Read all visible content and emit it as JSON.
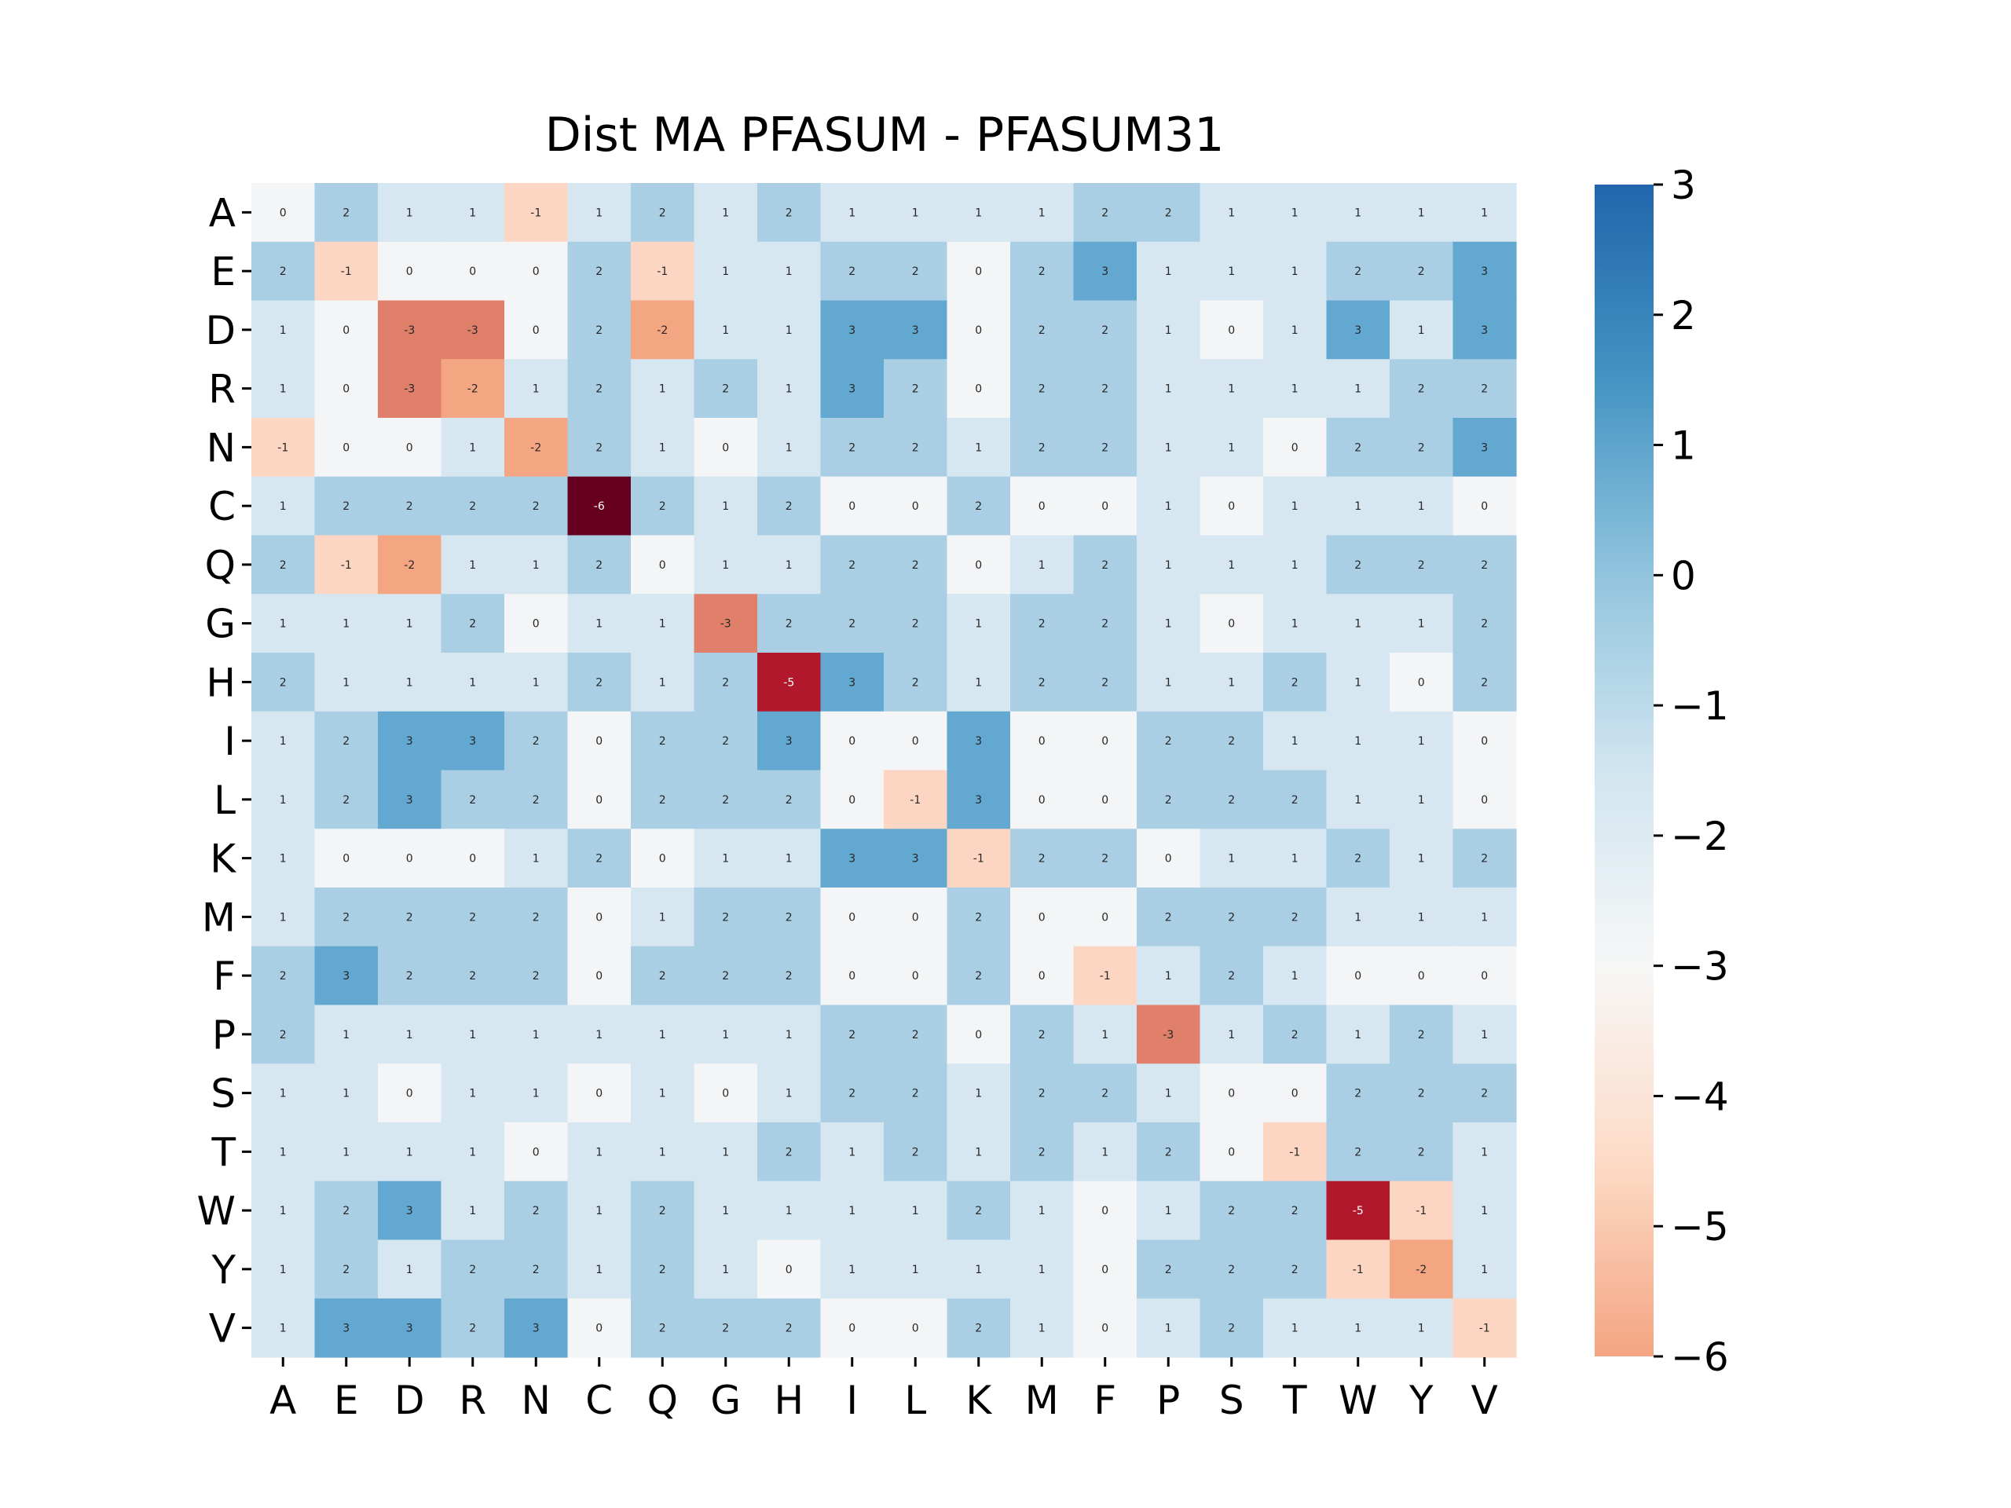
{
  "chart_data": {
    "type": "heatmap",
    "title": "Dist MA PFASUM - PFASUM31",
    "xlabel": "",
    "ylabel": "",
    "x_labels": [
      "A",
      "E",
      "D",
      "R",
      "N",
      "C",
      "Q",
      "G",
      "H",
      "I",
      "L",
      "K",
      "M",
      "F",
      "P",
      "S",
      "T",
      "W",
      "Y",
      "V"
    ],
    "y_labels": [
      "A",
      "E",
      "D",
      "R",
      "N",
      "C",
      "Q",
      "G",
      "H",
      "I",
      "L",
      "K",
      "M",
      "F",
      "P",
      "S",
      "T",
      "W",
      "Y",
      "V"
    ],
    "values": [
      [
        0,
        2,
        1,
        1,
        -1,
        1,
        2,
        1,
        2,
        1,
        1,
        1,
        1,
        2,
        2,
        1,
        1,
        1,
        1,
        1
      ],
      [
        2,
        -1,
        0,
        0,
        0,
        2,
        -1,
        1,
        1,
        2,
        2,
        0,
        2,
        3,
        1,
        1,
        1,
        2,
        2,
        3
      ],
      [
        1,
        0,
        -3,
        -3,
        0,
        2,
        -2,
        1,
        1,
        3,
        3,
        0,
        2,
        2,
        1,
        0,
        1,
        3,
        1,
        3
      ],
      [
        1,
        0,
        -3,
        -2,
        1,
        2,
        1,
        2,
        1,
        3,
        2,
        0,
        2,
        2,
        1,
        1,
        1,
        1,
        2,
        2
      ],
      [
        -1,
        0,
        0,
        1,
        -2,
        2,
        1,
        0,
        1,
        2,
        2,
        1,
        2,
        2,
        1,
        1,
        0,
        2,
        2,
        3
      ],
      [
        1,
        2,
        2,
        2,
        2,
        -6,
        2,
        1,
        2,
        0,
        0,
        2,
        0,
        0,
        1,
        0,
        1,
        1,
        1,
        0
      ],
      [
        2,
        -1,
        -2,
        1,
        1,
        2,
        0,
        1,
        1,
        2,
        2,
        0,
        1,
        2,
        1,
        1,
        1,
        2,
        2,
        2
      ],
      [
        1,
        1,
        1,
        2,
        0,
        1,
        1,
        -3,
        2,
        2,
        2,
        1,
        2,
        2,
        1,
        0,
        1,
        1,
        1,
        2
      ],
      [
        2,
        1,
        1,
        1,
        1,
        2,
        1,
        2,
        -5,
        3,
        2,
        1,
        2,
        2,
        1,
        1,
        2,
        1,
        0,
        2
      ],
      [
        1,
        2,
        3,
        3,
        2,
        0,
        2,
        2,
        3,
        0,
        0,
        3,
        0,
        0,
        2,
        2,
        1,
        1,
        1,
        0
      ],
      [
        1,
        2,
        3,
        2,
        2,
        0,
        2,
        2,
        2,
        0,
        -1,
        3,
        0,
        0,
        2,
        2,
        2,
        1,
        1,
        0
      ],
      [
        1,
        0,
        0,
        0,
        1,
        2,
        0,
        1,
        1,
        3,
        3,
        -1,
        2,
        2,
        0,
        1,
        1,
        2,
        1,
        2
      ],
      [
        1,
        2,
        2,
        2,
        2,
        0,
        1,
        2,
        2,
        0,
        0,
        2,
        0,
        0,
        2,
        2,
        2,
        1,
        1,
        1
      ],
      [
        2,
        3,
        2,
        2,
        2,
        0,
        2,
        2,
        2,
        0,
        0,
        2,
        0,
        -1,
        1,
        2,
        1,
        0,
        0,
        0
      ],
      [
        2,
        1,
        1,
        1,
        1,
        1,
        1,
        1,
        1,
        2,
        2,
        0,
        2,
        1,
        -3,
        1,
        2,
        1,
        2,
        1
      ],
      [
        1,
        1,
        0,
        1,
        1,
        0,
        1,
        0,
        1,
        2,
        2,
        1,
        2,
        2,
        1,
        0,
        0,
        2,
        2,
        2
      ],
      [
        1,
        1,
        1,
        1,
        0,
        1,
        1,
        1,
        2,
        1,
        2,
        1,
        2,
        1,
        2,
        0,
        -1,
        2,
        2,
        1
      ],
      [
        1,
        2,
        3,
        1,
        2,
        1,
        2,
        1,
        1,
        1,
        1,
        2,
        1,
        0,
        1,
        2,
        2,
        -5,
        -1,
        1
      ],
      [
        1,
        2,
        1,
        2,
        2,
        1,
        2,
        1,
        0,
        1,
        1,
        1,
        1,
        0,
        2,
        2,
        2,
        -1,
        -2,
        1
      ],
      [
        1,
        3,
        3,
        2,
        3,
        0,
        2,
        2,
        2,
        0,
        0,
        2,
        1,
        0,
        1,
        2,
        1,
        1,
        1,
        -1
      ]
    ],
    "vmin": -6,
    "vmax": 3,
    "colormap": "RdBu",
    "colorbar_ticks": [
      3,
      2,
      1,
      0,
      -1,
      -2,
      -3,
      -4,
      -5,
      -6
    ],
    "colors": {
      "-6": "#67001f",
      "-5": "#b2182b",
      "-3": "#e0806a",
      "-2": "#f4a683",
      "-1": "#fcd6c3",
      "0": "#f4f5f6",
      "1": "#d6e7f1",
      "2": "#aacfe5",
      "3": "#63a8d0"
    }
  }
}
